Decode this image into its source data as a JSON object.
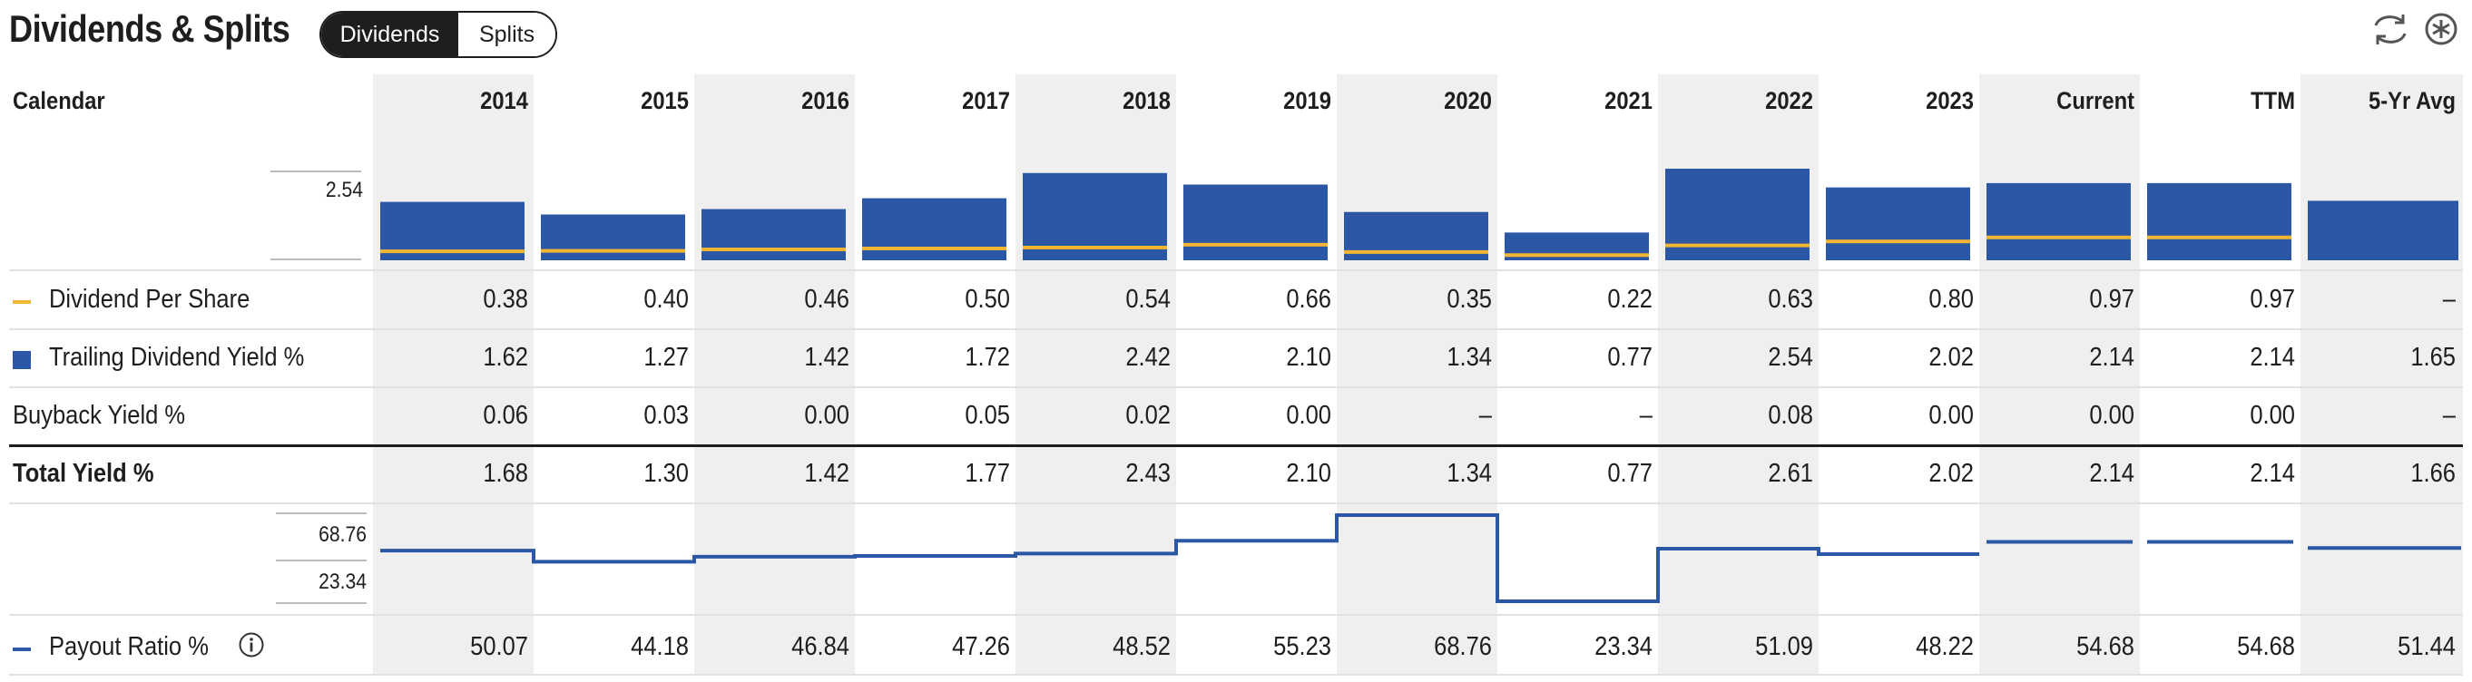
{
  "header": {
    "title": "Dividends & Splits",
    "tabs": [
      {
        "label": "Dividends",
        "active": true
      },
      {
        "label": "Splits",
        "active": false
      }
    ],
    "icons": [
      "refresh-icon",
      "settings-icon"
    ]
  },
  "table": {
    "first_col_header": "Calendar",
    "columns": [
      "2014",
      "2015",
      "2016",
      "2017",
      "2018",
      "2019",
      "2020",
      "2021",
      "2022",
      "2023",
      "Current",
      "TTM",
      "5-Yr Avg"
    ],
    "rows": [
      {
        "label": "Dividend Per Share",
        "values": [
          "0.38",
          "0.40",
          "0.46",
          "0.50",
          "0.54",
          "0.66",
          "0.35",
          "0.22",
          "0.63",
          "0.80",
          "0.97",
          "0.97",
          "–"
        ]
      },
      {
        "label": "Trailing Dividend Yield %",
        "values": [
          "1.62",
          "1.27",
          "1.42",
          "1.72",
          "2.42",
          "2.10",
          "1.34",
          "0.77",
          "2.54",
          "2.02",
          "2.14",
          "2.14",
          "1.65"
        ]
      },
      {
        "label": "Buyback Yield %",
        "values": [
          "0.06",
          "0.03",
          "0.00",
          "0.05",
          "0.02",
          "0.00",
          "–",
          "–",
          "0.08",
          "0.00",
          "0.00",
          "0.00",
          "–"
        ]
      },
      {
        "label": "Total Yield %",
        "values": [
          "1.68",
          "1.30",
          "1.42",
          "1.77",
          "2.43",
          "2.10",
          "1.34",
          "0.77",
          "2.61",
          "2.02",
          "2.14",
          "2.14",
          "1.66"
        ]
      },
      {
        "label": "Payout Ratio %",
        "values": [
          "50.07",
          "44.18",
          "46.84",
          "47.26",
          "48.52",
          "55.23",
          "68.76",
          "23.34",
          "51.09",
          "48.22",
          "54.68",
          "54.68",
          "51.44"
        ]
      }
    ]
  },
  "chart_data": [
    {
      "type": "bar",
      "categories": [
        "2014",
        "2015",
        "2016",
        "2017",
        "2018",
        "2019",
        "2020",
        "2021",
        "2022",
        "2023",
        "Current",
        "TTM",
        "5-Yr Avg"
      ],
      "axis_label": "2.54",
      "series": [
        {
          "name": "Trailing Dividend Yield %",
          "color": "#2b57a4",
          "values": [
            1.62,
            1.27,
            1.42,
            1.72,
            2.42,
            2.1,
            1.34,
            0.77,
            2.54,
            2.02,
            2.14,
            2.14,
            1.65
          ]
        },
        {
          "name": "Dividend Per Share",
          "color": "#f2b632",
          "values": [
            0.38,
            0.4,
            0.46,
            0.5,
            0.54,
            0.66,
            0.35,
            0.22,
            0.63,
            0.8,
            0.97,
            0.97,
            null
          ]
        }
      ]
    },
    {
      "type": "line",
      "categories": [
        "2014",
        "2015",
        "2016",
        "2017",
        "2018",
        "2019",
        "2020",
        "2021",
        "2022",
        "2023",
        "Current",
        "TTM",
        "5-Yr Avg"
      ],
      "axis_labels": [
        "68.76",
        "23.34"
      ],
      "series": [
        {
          "name": "Payout Ratio %",
          "color": "#2b57a4",
          "values": [
            50.07,
            44.18,
            46.84,
            47.26,
            48.52,
            55.23,
            68.76,
            23.34,
            51.09,
            48.22,
            54.68,
            54.68,
            51.44
          ]
        }
      ]
    }
  ]
}
